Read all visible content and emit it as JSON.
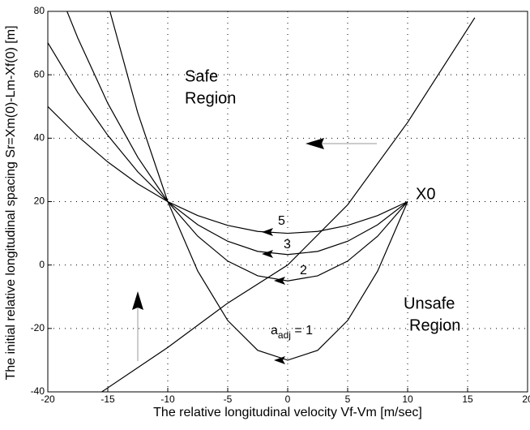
{
  "chart_data": {
    "type": "line",
    "xlabel": "The relative longitudinal velocity  Vf-Vm  [m/sec]",
    "ylabel": "The initial relative longitudinal spacing Sr=Xm(0)-Lm-Xf(0)  [m]",
    "x": [
      -20,
      -17.5,
      -15,
      -12.5,
      -10,
      -7.5,
      -5,
      -2.5,
      0,
      2.5,
      5,
      7.5,
      10
    ],
    "series": [
      {
        "color": "#000000",
        "values": [
          null,
          null,
          82.5,
          48,
          20,
          -1.9,
          -17.5,
          -26.9,
          -30,
          -26.9,
          -17.5,
          -1.9,
          20
        ]
      },
      {
        "color": "#000000",
        "values": [
          95,
          71.6,
          51,
          34,
          20,
          9.1,
          1.25,
          -3.4,
          -5,
          -3.4,
          1.25,
          9.1,
          20
        ]
      },
      {
        "color": "#000000",
        "values": [
          70.1,
          54.4,
          40.9,
          29.4,
          20,
          12.7,
          7.5,
          4.3,
          3.3,
          4.3,
          7.5,
          12.7,
          20
        ]
      },
      {
        "color": "#000000",
        "values": [
          50,
          40.6,
          32.5,
          25.6,
          20,
          15.6,
          12.5,
          10.6,
          10,
          10.6,
          12.5,
          15.6,
          20
        ]
      }
    ],
    "boundary": {
      "color": "#000000",
      "x": [
        -15.5,
        -10,
        -5,
        0,
        5,
        10,
        15.6
      ],
      "values": [
        -40,
        -26,
        -12,
        0,
        19,
        45,
        78
      ]
    },
    "annotations": {
      "safe": [
        "Safe",
        "Region"
      ],
      "unsafe": [
        "Unsafe",
        "Region"
      ],
      "start": "X0",
      "a5": "5",
      "a3": "3",
      "a2": "2",
      "a1": {
        "base": "a",
        "sub": "adj",
        "rest": " = 1"
      }
    },
    "xlim": [
      -20,
      20
    ],
    "xticks": [
      -20,
      -15,
      -10,
      -5,
      0,
      5,
      10,
      15,
      20
    ],
    "ylim": [
      -40,
      80
    ],
    "yticks": [
      -40,
      -20,
      0,
      20,
      40,
      60,
      80
    ],
    "grid": true
  }
}
